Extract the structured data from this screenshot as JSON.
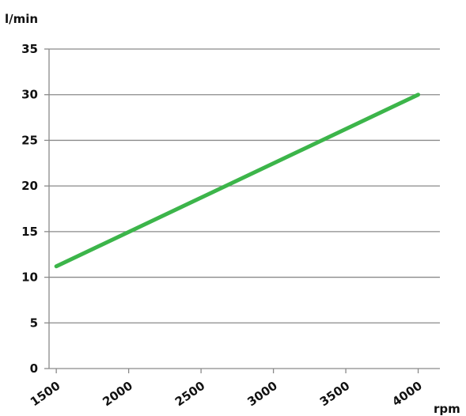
{
  "chart_data": {
    "type": "line",
    "title": "",
    "ylabel": "l/min",
    "xlabel": "rpm",
    "x": [
      1500,
      4000
    ],
    "series": [
      {
        "values": [
          11.2,
          30.0
        ],
        "color": "#3cb54a"
      }
    ],
    "xlim": [
      1450,
      4150
    ],
    "ylim": [
      0,
      35
    ],
    "x_ticks": [
      1500,
      2000,
      2500,
      3000,
      3500,
      4000
    ],
    "x_tick_labels": [
      "1500",
      "2000",
      "2500",
      "3000",
      "3500",
      "4000"
    ],
    "y_ticks": [
      0,
      5,
      10,
      15,
      20,
      25,
      30,
      35
    ],
    "y_tick_labels": [
      "0",
      "5",
      "10",
      "15",
      "20",
      "25",
      "30",
      "35"
    ],
    "grid": "horizontal",
    "legend": "none",
    "colors": {
      "grid": "#8a8a8a",
      "axis": "#8a8a8a",
      "text": "#111111"
    }
  }
}
